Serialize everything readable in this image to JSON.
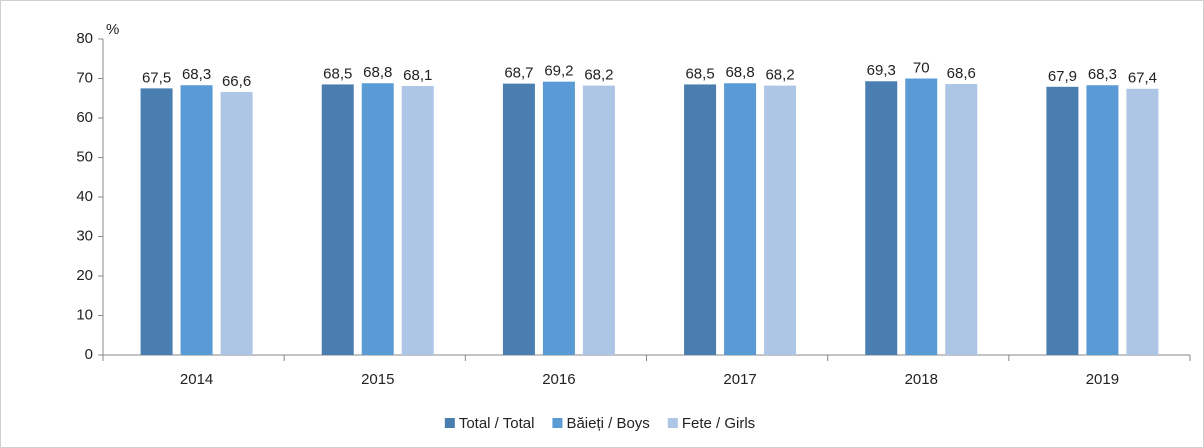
{
  "chart_data": {
    "type": "bar",
    "y_label": "%",
    "categories": [
      "2014",
      "2015",
      "2016",
      "2017",
      "2018",
      "2019"
    ],
    "series": [
      {
        "name": "Total / Total",
        "color": "#4a7eb0",
        "values": [
          67.5,
          68.5,
          68.7,
          68.5,
          69.3,
          67.9
        ],
        "value_labels": [
          "67,5",
          "68,5",
          "68,7",
          "68,5",
          "69,3",
          "67,9"
        ]
      },
      {
        "name": "Băieți / Boys",
        "color": "#5b9bd5",
        "values": [
          68.3,
          68.8,
          69.2,
          68.8,
          70,
          68.3
        ],
        "value_labels": [
          "68,3",
          "68,8",
          "69,2",
          "68,8",
          "70",
          "68,3"
        ]
      },
      {
        "name": "Fete / Girls",
        "color": "#aec6e6",
        "values": [
          66.6,
          68.1,
          68.2,
          68.2,
          68.6,
          67.4
        ],
        "value_labels": [
          "66,6",
          "68,1",
          "68,2",
          "68,2",
          "68,6",
          "67,4"
        ]
      }
    ],
    "ylim": [
      0,
      80
    ],
    "yticks": [
      0,
      10,
      20,
      30,
      40,
      50,
      60,
      70,
      80
    ],
    "grid": false,
    "legend": "bottom"
  }
}
